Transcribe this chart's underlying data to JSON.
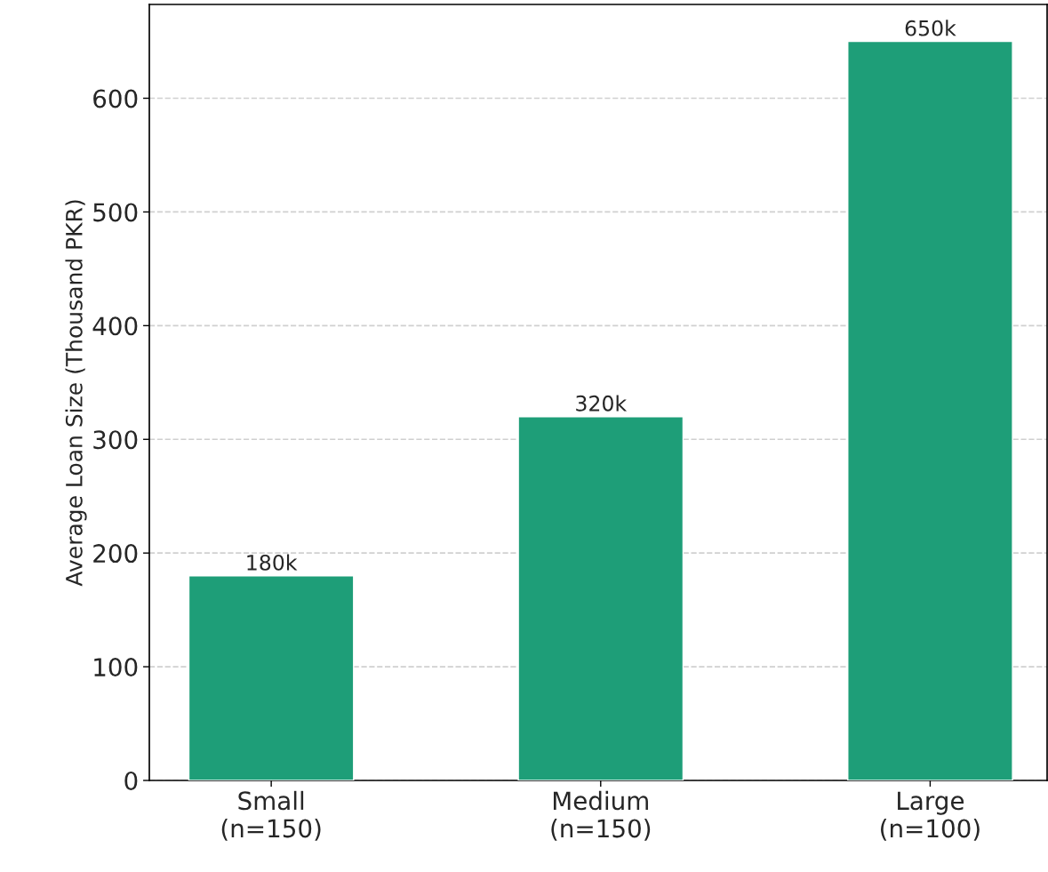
{
  "chart_data": {
    "type": "bar",
    "ylabel": "Average Loan Size (Thousand PKR)",
    "categories": [
      "Small\n(n=150)",
      "Medium\n(n=150)",
      "Large\n(n=100)"
    ],
    "values": [
      180,
      320,
      650
    ],
    "color": "#1e9e78",
    "value_labels": [
      "180k",
      "320k",
      "650k"
    ],
    "ylim": [
      0,
      682.5
    ],
    "yticks": [
      0,
      100,
      200,
      300,
      400,
      500,
      600
    ],
    "grid": "y"
  }
}
